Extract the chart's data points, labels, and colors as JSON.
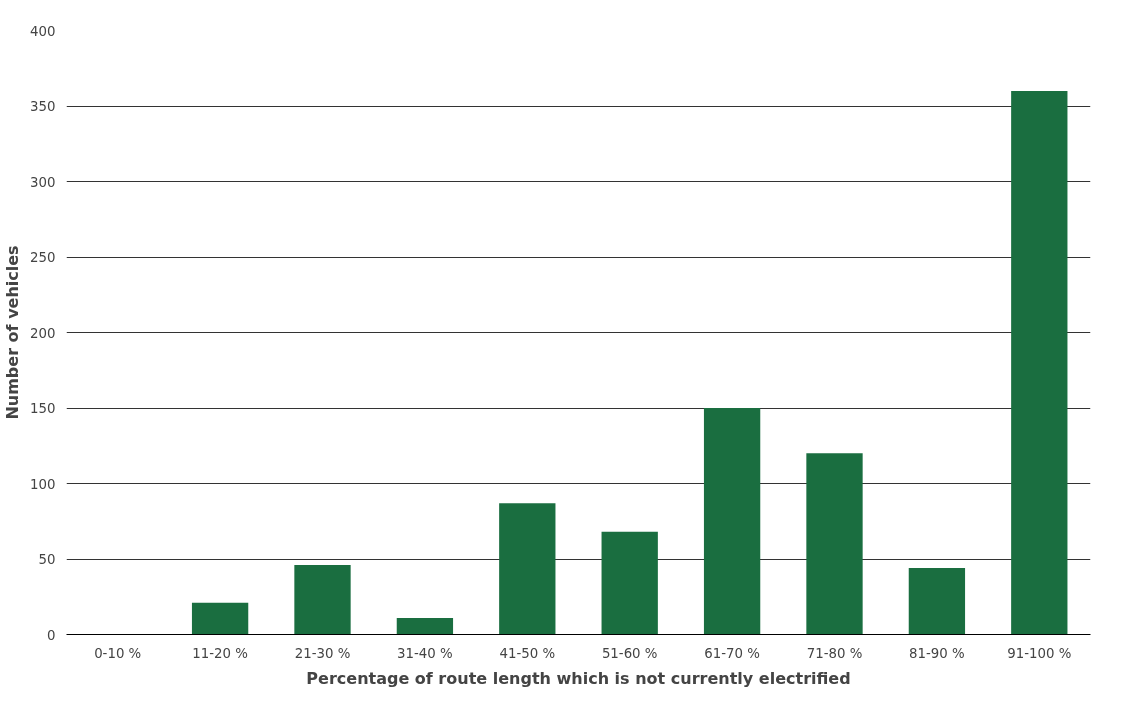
{
  "chart_data": {
    "type": "bar",
    "xlabel": "Percentage of route length which is not currently electrified",
    "ylabel": "Number of vehicles",
    "categories": [
      "0-10 %",
      "11-20 %",
      "21-30 %",
      "31-40 %",
      "41-50 %",
      "51-60 %",
      "61-70 %",
      "71-80 %",
      "81-90 %",
      "91-100 %"
    ],
    "values": [
      0,
      21,
      46,
      11,
      87,
      68,
      150,
      120,
      44,
      360
    ],
    "color": "#1a6e40",
    "ylim": [
      0,
      400
    ],
    "yticks": [
      0,
      50,
      100,
      150,
      200,
      250,
      300,
      350,
      400
    ],
    "grid": "y"
  }
}
